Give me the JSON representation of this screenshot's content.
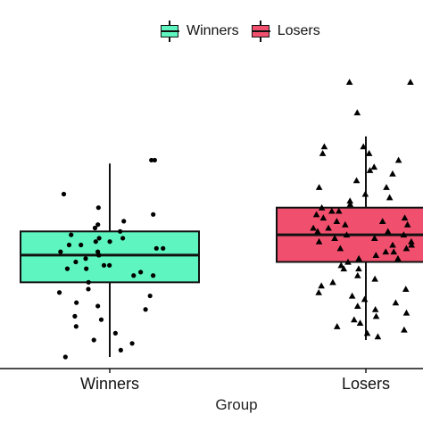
{
  "chart_data": {
    "type": "box",
    "xlabel": "Group",
    "ylabel": "",
    "legend_position": "top",
    "categories": [
      "Winners",
      "Losers"
    ],
    "series": [
      {
        "name": "Winners",
        "color": "#5ef5c0",
        "marker": "circle",
        "box": {
          "whisker_low": 0.0,
          "q1": 0.22,
          "median": 0.3,
          "q3": 0.37,
          "whisker_high": 0.57
        },
        "points": [
          0.58,
          0.58,
          0.48,
          0.44,
          0.42,
          0.36,
          0.34,
          0.34,
          0.35,
          0.33,
          0.33,
          0.32,
          0.3,
          0.28,
          0.27,
          0.26,
          0.26,
          0.24,
          0.22,
          0.2,
          0.19,
          0.18,
          0.16,
          0.14,
          0.11,
          0.09,
          0.07,
          0.05,
          0.04,
          0.02,
          0.0,
          0.12,
          0.3,
          0.31,
          0.32,
          0.38,
          0.4,
          0.37,
          0.24,
          0.29,
          0.31,
          0.27,
          0.15,
          0.25,
          0.35,
          0.39
        ]
      },
      {
        "name": "Losers",
        "color": "#f0506e",
        "marker": "triangle",
        "box": {
          "whisker_low": 0.05,
          "q1": 0.28,
          "median": 0.36,
          "q3": 0.44,
          "whisker_high": 0.65
        },
        "points": [
          0.81,
          0.81,
          0.72,
          0.62,
          0.62,
          0.6,
          0.58,
          0.56,
          0.54,
          0.52,
          0.5,
          0.48,
          0.46,
          0.45,
          0.43,
          0.42,
          0.41,
          0.4,
          0.39,
          0.38,
          0.37,
          0.36,
          0.35,
          0.34,
          0.33,
          0.32,
          0.31,
          0.3,
          0.29,
          0.28,
          0.27,
          0.26,
          0.24,
          0.22,
          0.2,
          0.18,
          0.16,
          0.14,
          0.12,
          0.1,
          0.08,
          0.07,
          0.06,
          0.6,
          0.55,
          0.5,
          0.47,
          0.44,
          0.41,
          0.38,
          0.35,
          0.32,
          0.29,
          0.26,
          0.23,
          0.21,
          0.19,
          0.17,
          0.15,
          0.13,
          0.11,
          0.09,
          0.39,
          0.37,
          0.33,
          0.31,
          0.36,
          0.34,
          0.4,
          0.43
        ]
      }
    ]
  },
  "legend": {
    "items": [
      {
        "label": "Winners",
        "color": "#5ef5c0"
      },
      {
        "label": "Losers",
        "color": "#f0506e"
      }
    ]
  }
}
